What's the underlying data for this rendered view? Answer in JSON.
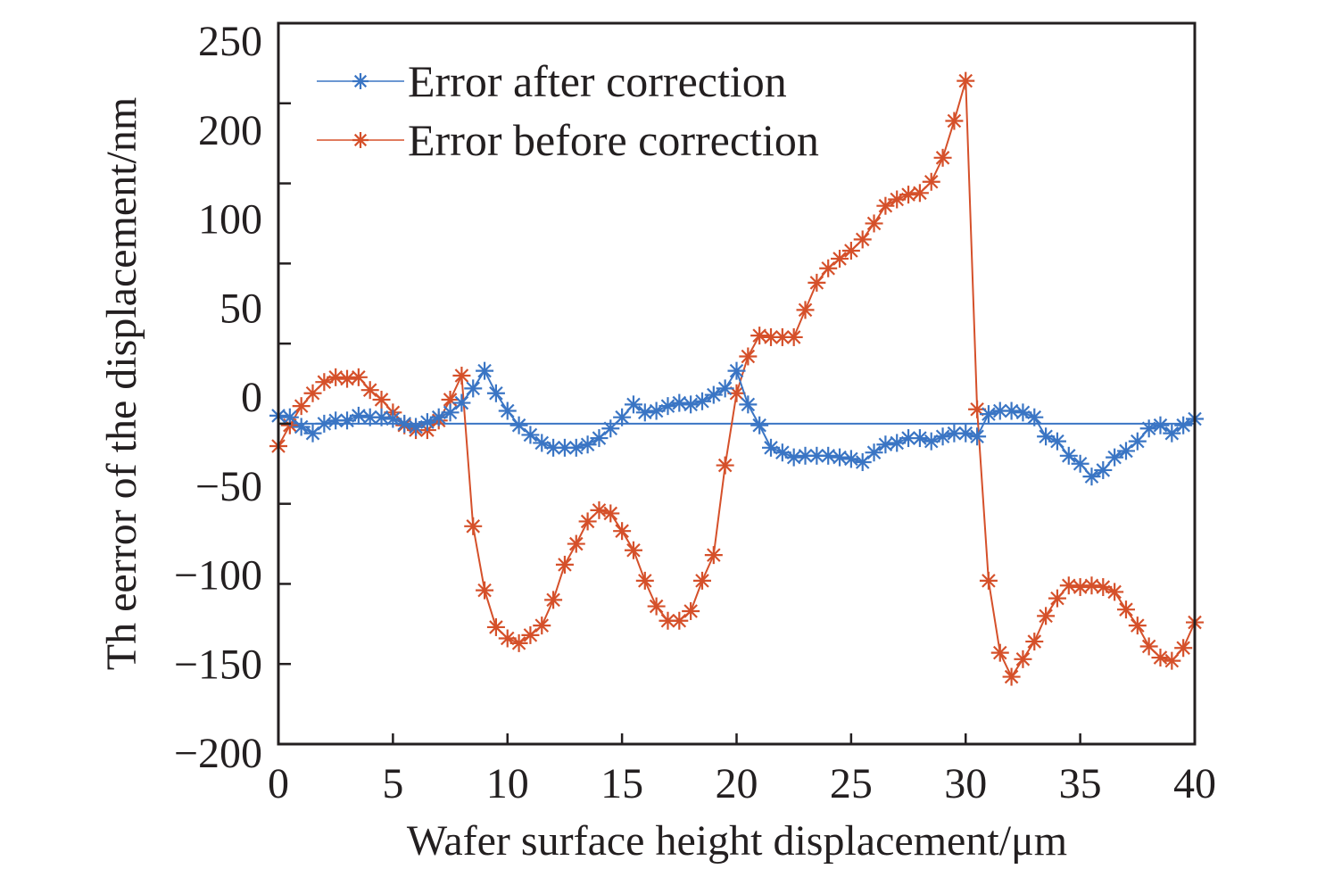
{
  "chart_data": {
    "type": "line",
    "title": "",
    "xlabel": "Wafer surface height displacement/μm",
    "ylabel": "Th eerror of the displacement/nm",
    "xlim": [
      0,
      40
    ],
    "ylim": [
      -200,
      250
    ],
    "x_ticks": [
      0,
      5,
      10,
      15,
      20,
      25,
      30,
      35,
      40
    ],
    "x_tick_labels": [
      "0",
      "5",
      "10",
      "15",
      "20",
      "25",
      "30",
      "35",
      "40"
    ],
    "y_tick_labels": [
      "250",
      "200",
      "100",
      "50",
      "0",
      "−50",
      "−100",
      "−150",
      "−200"
    ],
    "grid": false,
    "legend_position": "top-left",
    "reference_line": {
      "y": 0,
      "color": "#3a75c4"
    },
    "series": [
      {
        "name": "Error after correction",
        "color": "#3a75c4",
        "marker": "asterisk",
        "x": [
          0,
          0.5,
          1,
          1.5,
          2,
          2.5,
          3,
          3.5,
          4,
          4.5,
          5,
          5.5,
          6,
          6.5,
          7,
          7.5,
          8,
          8.5,
          9,
          9.5,
          10,
          10.5,
          11,
          11.5,
          12,
          12.5,
          13,
          13.5,
          14,
          14.5,
          15,
          15.5,
          16,
          16.5,
          17,
          17.5,
          18,
          18.5,
          19,
          19.5,
          20,
          20.5,
          21,
          21.5,
          22,
          22.5,
          23,
          23.5,
          24,
          24.5,
          25,
          25.5,
          26,
          26.5,
          27,
          27.5,
          28,
          28.5,
          29,
          29.5,
          30,
          30.5,
          31,
          31.5,
          32,
          32.5,
          33,
          33.5,
          34,
          34.5,
          35,
          35.5,
          36,
          36.5,
          37,
          37.5,
          38,
          38.5,
          39,
          39.5,
          40
        ],
        "y": [
          5,
          4,
          -2,
          -6,
          0,
          2,
          2,
          5,
          4,
          4,
          3,
          0,
          -2,
          1,
          4,
          7,
          13,
          22,
          33,
          19,
          8,
          -1,
          -7,
          -12,
          -15,
          -15,
          -15,
          -13,
          -9,
          -3,
          4,
          12,
          7,
          8,
          11,
          13,
          12,
          14,
          18,
          22,
          33,
          12,
          -1,
          -15,
          -18,
          -21,
          -20,
          -20,
          -20,
          -21,
          -22,
          -24,
          -18,
          -13,
          -12,
          -9,
          -9,
          -11,
          -8,
          -6,
          -6,
          -8,
          6,
          8,
          8,
          7,
          4,
          -8,
          -11,
          -20,
          -25,
          -33,
          -29,
          -21,
          -17,
          -11,
          -3,
          -1,
          -6,
          -1,
          3
        ]
      },
      {
        "name": "Error before correction",
        "color": "#d5502a",
        "marker": "asterisk",
        "x": [
          0,
          0.5,
          1,
          1.5,
          2,
          2.5,
          3,
          3.5,
          4,
          4.5,
          5,
          5.5,
          6,
          6.5,
          7,
          7.5,
          8,
          8.5,
          9,
          9.5,
          10,
          10.5,
          11,
          11.5,
          12,
          12.5,
          13,
          13.5,
          14,
          14.5,
          15,
          15.5,
          16,
          16.5,
          17,
          17.5,
          18,
          18.5,
          19,
          19.5,
          20,
          20.5,
          21,
          21.5,
          22,
          22.5,
          23,
          23.5,
          24,
          24.5,
          25,
          25.5,
          26,
          26.5,
          27,
          27.5,
          28,
          28.5,
          29,
          29.5,
          30,
          30.5,
          31,
          31.5,
          32,
          32.5,
          33,
          33.5,
          34,
          34.5,
          35,
          35.5,
          36,
          36.5,
          37,
          37.5,
          38,
          38.5,
          39,
          39.5,
          40
        ],
        "y": [
          -14,
          -1,
          11,
          19,
          26,
          29,
          28,
          29,
          21,
          15,
          7,
          -1,
          -4,
          -4,
          2,
          15,
          30,
          -64,
          -104,
          -127,
          -134,
          -137,
          -132,
          -126,
          -110,
          -88,
          -75,
          -61,
          -54,
          -56,
          -67,
          -79,
          -98,
          -114,
          -123,
          -123,
          -117,
          -98,
          -82,
          -26,
          19,
          42,
          55,
          54,
          54,
          54,
          71,
          88,
          97,
          103,
          108,
          115,
          125,
          136,
          140,
          143,
          144,
          151,
          166,
          189,
          214,
          9,
          -98,
          -143,
          -158,
          -147,
          -136,
          -120,
          -109,
          -101,
          -102,
          -101,
          -102,
          -105,
          -116,
          -126,
          -139,
          -146,
          -148,
          -140,
          -124
        ]
      }
    ]
  }
}
